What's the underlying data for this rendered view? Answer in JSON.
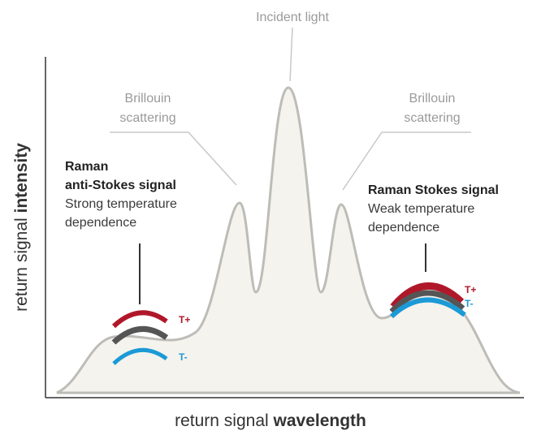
{
  "incident": "Incident light",
  "brillouin_left": [
    "Brillouin",
    "scattering"
  ],
  "brillouin_right": [
    "Brillouin",
    "scattering"
  ],
  "anti_stokes": {
    "title": [
      "Raman",
      "anti-Stokes signal"
    ],
    "note": [
      "Strong temperature",
      "dependence"
    ],
    "high": "T+",
    "low": "T-"
  },
  "stokes": {
    "title": "Raman Stokes signal",
    "note": [
      "Weak temperature",
      "dependence"
    ],
    "high": "T+",
    "low": "T-"
  },
  "axes": {
    "y": {
      "plain": "return signal",
      "bold": "intensity"
    },
    "x": {
      "plain": "return signal",
      "bold": "wavelength"
    }
  }
}
